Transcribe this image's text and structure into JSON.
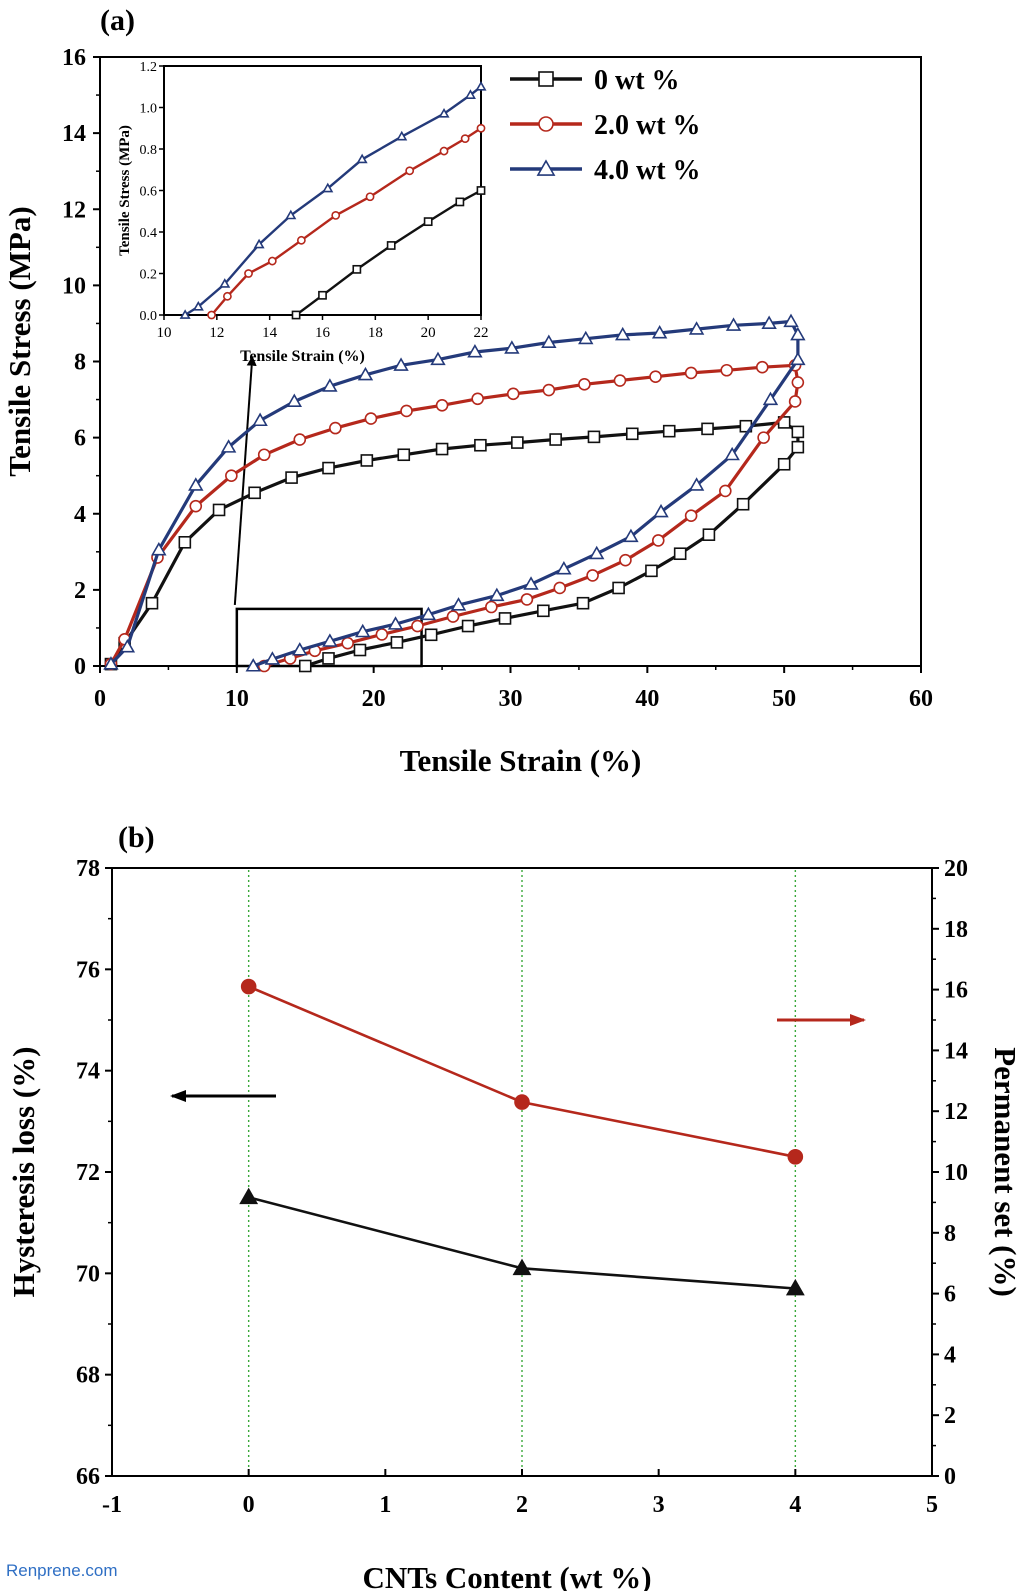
{
  "watermark": "Renprene.com",
  "chart_data": [
    {
      "panel_label": "(a)",
      "type": "line",
      "xlabel": "Tensile Strain (%)",
      "ylabel": "Tensile Stress (MPa)",
      "xlim": [
        0,
        60
      ],
      "ylim": [
        0,
        16
      ],
      "xticks": [
        0,
        10,
        20,
        30,
        40,
        50,
        60
      ],
      "yticks": [
        0,
        2,
        4,
        6,
        8,
        10,
        12,
        14,
        16
      ],
      "legend_position": "top-right",
      "series": [
        {
          "name": "0 wt %",
          "color": "#111111",
          "marker": "square",
          "loading": [
            [
              0.8,
              0.05
            ],
            [
              1.8,
              0.6
            ],
            [
              3.8,
              1.65
            ],
            [
              6.2,
              3.25
            ],
            [
              8.7,
              4.1
            ],
            [
              11.3,
              4.55
            ],
            [
              14.0,
              4.95
            ],
            [
              16.7,
              5.2
            ],
            [
              19.5,
              5.4
            ],
            [
              22.2,
              5.55
            ],
            [
              25.0,
              5.7
            ],
            [
              27.8,
              5.8
            ],
            [
              30.5,
              5.87
            ],
            [
              33.3,
              5.95
            ],
            [
              36.1,
              6.02
            ],
            [
              38.9,
              6.1
            ],
            [
              41.6,
              6.17
            ],
            [
              44.4,
              6.23
            ],
            [
              47.2,
              6.3
            ],
            [
              50.0,
              6.4
            ],
            [
              51.0,
              6.15
            ],
            [
              51.0,
              5.75
            ]
          ],
          "unloading": [
            [
              50.0,
              5.3
            ],
            [
              47.0,
              4.25
            ],
            [
              44.5,
              3.45
            ],
            [
              42.4,
              2.95
            ],
            [
              40.3,
              2.5
            ],
            [
              37.9,
              2.05
            ],
            [
              35.3,
              1.65
            ],
            [
              32.4,
              1.45
            ],
            [
              29.6,
              1.25
            ],
            [
              26.9,
              1.05
            ],
            [
              24.2,
              0.82
            ],
            [
              21.7,
              0.62
            ],
            [
              19.0,
              0.42
            ],
            [
              16.7,
              0.2
            ],
            [
              15.0,
              0.0
            ]
          ]
        },
        {
          "name": "2.0 wt %",
          "color": "#b5281c",
          "marker": "circle",
          "loading": [
            [
              0.8,
              0.05
            ],
            [
              1.8,
              0.7
            ],
            [
              4.2,
              2.85
            ],
            [
              7.0,
              4.2
            ],
            [
              9.6,
              5.0
            ],
            [
              12.0,
              5.55
            ],
            [
              14.6,
              5.95
            ],
            [
              17.2,
              6.25
            ],
            [
              19.8,
              6.5
            ],
            [
              22.4,
              6.7
            ],
            [
              25.0,
              6.85
            ],
            [
              27.6,
              7.02
            ],
            [
              30.2,
              7.15
            ],
            [
              32.8,
              7.25
            ],
            [
              35.4,
              7.4
            ],
            [
              38.0,
              7.5
            ],
            [
              40.6,
              7.6
            ],
            [
              43.2,
              7.7
            ],
            [
              45.8,
              7.77
            ],
            [
              48.4,
              7.85
            ],
            [
              50.8,
              7.9
            ],
            [
              51.0,
              7.45
            ],
            [
              50.8,
              6.95
            ]
          ],
          "unloading": [
            [
              48.5,
              6.0
            ],
            [
              45.7,
              4.6
            ],
            [
              43.2,
              3.95
            ],
            [
              40.8,
              3.3
            ],
            [
              38.4,
              2.78
            ],
            [
              36.0,
              2.38
            ],
            [
              33.6,
              2.05
            ],
            [
              31.2,
              1.75
            ],
            [
              28.6,
              1.55
            ],
            [
              25.8,
              1.3
            ],
            [
              23.2,
              1.05
            ],
            [
              20.6,
              0.83
            ],
            [
              18.1,
              0.6
            ],
            [
              15.7,
              0.4
            ],
            [
              13.9,
              0.2
            ],
            [
              12.0,
              0.0
            ]
          ]
        },
        {
          "name": "4.0 wt %",
          "color": "#243a7a",
          "marker": "triangle",
          "loading": [
            [
              0.8,
              0.05
            ],
            [
              2.0,
              0.5
            ],
            [
              4.3,
              3.05
            ],
            [
              7.0,
              4.75
            ],
            [
              9.4,
              5.75
            ],
            [
              11.7,
              6.45
            ],
            [
              14.2,
              6.95
            ],
            [
              16.8,
              7.35
            ],
            [
              19.4,
              7.65
            ],
            [
              22.0,
              7.9
            ],
            [
              24.7,
              8.05
            ],
            [
              27.4,
              8.25
            ],
            [
              30.1,
              8.35
            ],
            [
              32.8,
              8.5
            ],
            [
              35.5,
              8.6
            ],
            [
              38.2,
              8.7
            ],
            [
              40.9,
              8.75
            ],
            [
              43.6,
              8.85
            ],
            [
              46.3,
              8.95
            ],
            [
              48.9,
              9.0
            ],
            [
              50.5,
              9.05
            ],
            [
              51.0,
              8.7
            ],
            [
              51.0,
              8.05
            ]
          ],
          "unloading": [
            [
              49.0,
              7.0
            ],
            [
              46.2,
              5.55
            ],
            [
              43.6,
              4.75
            ],
            [
              41.0,
              4.05
            ],
            [
              38.8,
              3.4
            ],
            [
              36.3,
              2.95
            ],
            [
              33.9,
              2.55
            ],
            [
              31.5,
              2.15
            ],
            [
              29.0,
              1.85
            ],
            [
              26.2,
              1.6
            ],
            [
              24.0,
              1.35
            ],
            [
              21.6,
              1.1
            ],
            [
              19.2,
              0.9
            ],
            [
              16.8,
              0.65
            ],
            [
              14.6,
              0.42
            ],
            [
              12.6,
              0.18
            ],
            [
              11.2,
              0.0
            ]
          ]
        }
      ],
      "annotation": {
        "type": "zoom-box",
        "x_range": [
          10,
          23.5
        ],
        "y_range": [
          0,
          1.5
        ],
        "arrow_to": [
          15,
          8.1
        ]
      },
      "inset": {
        "type": "line",
        "xlabel": "Tensile Strain (%)",
        "ylabel": "Tensile Stress (MPa)",
        "xlim": [
          10,
          22
        ],
        "ylim": [
          0,
          1.2
        ],
        "xticks": [
          10,
          12,
          14,
          16,
          18,
          20,
          22
        ],
        "yticks": [
          "0.0",
          "0.2",
          "0.4",
          "0.6",
          "0.8",
          "1.0",
          "1.2"
        ],
        "series": [
          {
            "name": "0 wt %",
            "color": "#111111",
            "marker": "square",
            "points": [
              [
                15.0,
                0.0
              ],
              [
                16.0,
                0.095
              ],
              [
                17.3,
                0.22
              ],
              [
                18.6,
                0.335
              ],
              [
                20.0,
                0.45
              ],
              [
                21.2,
                0.545
              ],
              [
                22.0,
                0.6
              ]
            ]
          },
          {
            "name": "2.0 wt %",
            "color": "#b5281c",
            "marker": "circle",
            "points": [
              [
                11.8,
                0.0
              ],
              [
                12.4,
                0.09
              ],
              [
                13.2,
                0.2
              ],
              [
                14.1,
                0.26
              ],
              [
                15.2,
                0.36
              ],
              [
                16.5,
                0.48
              ],
              [
                17.8,
                0.57
              ],
              [
                19.3,
                0.695
              ],
              [
                20.6,
                0.79
              ],
              [
                21.4,
                0.85
              ],
              [
                22.0,
                0.9
              ]
            ]
          },
          {
            "name": "4.0 wt %",
            "color": "#243a7a",
            "marker": "triangle",
            "points": [
              [
                10.8,
                0.0
              ],
              [
                11.3,
                0.04
              ],
              [
                12.3,
                0.15
              ],
              [
                13.6,
                0.34
              ],
              [
                14.8,
                0.48
              ],
              [
                16.2,
                0.61
              ],
              [
                17.5,
                0.75
              ],
              [
                19.0,
                0.86
              ],
              [
                20.6,
                0.97
              ],
              [
                21.6,
                1.06
              ],
              [
                22.0,
                1.1
              ]
            ]
          }
        ]
      }
    },
    {
      "panel_label": "(b)",
      "type": "line",
      "xlabel": "CNTs Content (wt %)",
      "ylabel": "Hysteresis loss (%)",
      "ylabel_right": "Permanent set (%)",
      "xlim": [
        -1,
        5
      ],
      "ylim": [
        66,
        78
      ],
      "ylim_right": [
        0,
        20
      ],
      "xticks": [
        -1,
        0,
        1,
        2,
        3,
        4,
        5
      ],
      "yticks": [
        66,
        68,
        70,
        72,
        74,
        76,
        78
      ],
      "yticks_right": [
        0,
        2,
        4,
        6,
        8,
        10,
        12,
        14,
        16,
        18,
        20
      ],
      "x_guides": [
        0,
        2,
        4
      ],
      "series": [
        {
          "color": "#111111",
          "marker": "triangle",
          "axis": "left",
          "x": [
            0,
            2,
            4
          ],
          "values": [
            71.5,
            70.1,
            69.7
          ]
        },
        {
          "color": "#b5281c",
          "marker": "circle",
          "axis": "right",
          "x": [
            0,
            2,
            4
          ],
          "values": [
            16.1,
            12.3,
            10.5
          ]
        }
      ],
      "arrows": [
        {
          "series_axis": "left",
          "direction": "left"
        },
        {
          "series_axis": "right",
          "direction": "right"
        }
      ]
    }
  ]
}
